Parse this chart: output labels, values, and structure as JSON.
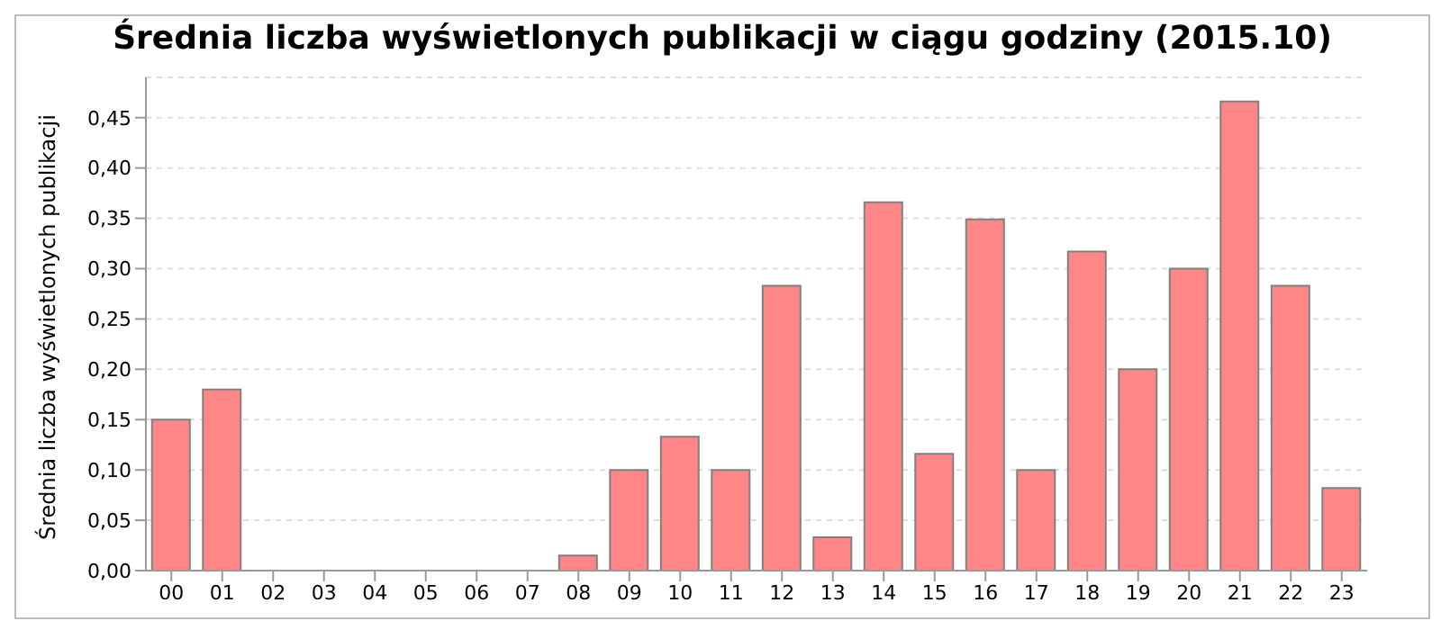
{
  "chart_data": {
    "type": "bar",
    "title": "Średnia liczba wyświetlonych publikacji w ciągu godziny (2015.10)",
    "ylabel": "Średnia liczba wyświetlonych publikacji",
    "categories": [
      "00",
      "01",
      "02",
      "03",
      "04",
      "05",
      "06",
      "07",
      "08",
      "09",
      "10",
      "11",
      "12",
      "13",
      "14",
      "15",
      "16",
      "17",
      "18",
      "19",
      "20",
      "21",
      "22",
      "23"
    ],
    "values": [
      0.15,
      0.18,
      0,
      0,
      0,
      0,
      0,
      0,
      0.015,
      0.1,
      0.133,
      0.1,
      0.283,
      0.033,
      0.366,
      0.116,
      0.349,
      0.1,
      0.317,
      0.2,
      0.3,
      0.466,
      0.283,
      0.082
    ],
    "color": "#ff7f7f",
    "ylim": [
      0,
      0.49
    ],
    "yticks": [
      {
        "value": 0,
        "label": "0,00"
      },
      {
        "value": 0.05,
        "label": "0,05"
      },
      {
        "value": 0.1,
        "label": "0,10"
      },
      {
        "value": 0.15,
        "label": "0,15"
      },
      {
        "value": 0.2,
        "label": "0,20"
      },
      {
        "value": 0.25,
        "label": "0,25"
      },
      {
        "value": 0.3,
        "label": "0,30"
      },
      {
        "value": 0.35,
        "label": "0,35"
      },
      {
        "value": 0.4,
        "label": "0,40"
      },
      {
        "value": 0.45,
        "label": "0,45"
      }
    ],
    "grid": "y"
  }
}
